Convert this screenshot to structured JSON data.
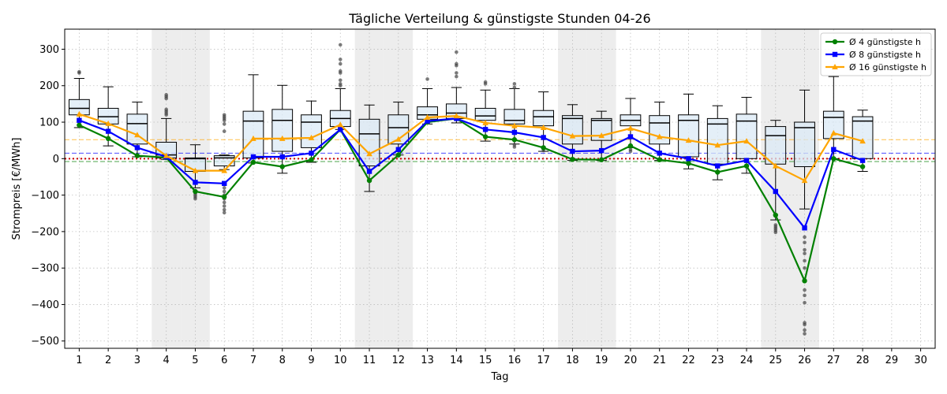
{
  "chart_data": {
    "type": "box",
    "title": "Tägliche Verteilung & günstigste Stunden 04-26",
    "xlabel": "Tag",
    "ylabel": "Strompreis [€/MWh]",
    "xlim": [
      0.5,
      30.5
    ],
    "ylim": [
      -520,
      355
    ],
    "x_ticks": [
      1,
      2,
      3,
      4,
      5,
      6,
      7,
      8,
      9,
      10,
      11,
      12,
      13,
      14,
      15,
      16,
      17,
      18,
      19,
      20,
      21,
      22,
      23,
      24,
      25,
      26,
      27,
      28,
      29,
      30
    ],
    "y_ticks": [
      -500,
      -400,
      -300,
      -200,
      -100,
      0,
      100,
      200,
      300
    ],
    "grid": true,
    "legend_position": "top-right",
    "shaded_days": [
      4,
      5,
      11,
      12,
      18,
      19,
      25,
      26
    ],
    "reference_lines": [
      {
        "y": 52,
        "color": "#ffa500",
        "style": "dashed"
      },
      {
        "y": 15,
        "color": "#0000ff",
        "style": "dashed"
      },
      {
        "y": 0,
        "color": "#cc0000",
        "style": "dotted"
      },
      {
        "y": -8,
        "color": "#008000",
        "style": "dashed"
      }
    ],
    "boxes": [
      {
        "day": 1,
        "whislo": 85,
        "q1": 120,
        "med": 138,
        "q3": 162,
        "whishi": 220,
        "fliers": [
          235,
          238
        ]
      },
      {
        "day": 2,
        "whislo": 35,
        "q1": 95,
        "med": 115,
        "q3": 138,
        "whishi": 197,
        "fliers": []
      },
      {
        "day": 3,
        "whislo": 5,
        "q1": 40,
        "med": 96,
        "q3": 122,
        "whishi": 155,
        "fliers": []
      },
      {
        "day": 4,
        "whislo": -2,
        "q1": 2,
        "med": 10,
        "q3": 45,
        "whishi": 110,
        "fliers": [
          120,
          125,
          130,
          135,
          165,
          170,
          175
        ]
      },
      {
        "day": 5,
        "whislo": -80,
        "q1": -35,
        "med": 0,
        "q3": 2,
        "whishi": 38,
        "fliers": [
          -90,
          -95,
          -100,
          -105,
          -110
        ]
      },
      {
        "day": 6,
        "whislo": -30,
        "q1": -20,
        "med": 2,
        "q3": 8,
        "whishi": 10,
        "fliers": [
          -80,
          -90,
          -100,
          -110,
          -120,
          -130,
          -140,
          -148,
          75,
          95,
          105,
          110,
          115,
          120
        ]
      },
      {
        "day": 7,
        "whislo": -12,
        "q1": 2,
        "med": 103,
        "q3": 130,
        "whishi": 230,
        "fliers": []
      },
      {
        "day": 8,
        "whislo": -40,
        "q1": 20,
        "med": 105,
        "q3": 135,
        "whishi": 201,
        "fliers": []
      },
      {
        "day": 9,
        "whislo": -10,
        "q1": 30,
        "med": 100,
        "q3": 120,
        "whishi": 158,
        "fliers": []
      },
      {
        "day": 10,
        "whislo": 80,
        "q1": 88,
        "med": 110,
        "q3": 132,
        "whishi": 192,
        "fliers": [
          200,
          205,
          215,
          235,
          240,
          260,
          272,
          312
        ]
      },
      {
        "day": 11,
        "whislo": -90,
        "q1": -20,
        "med": 68,
        "q3": 108,
        "whishi": 147,
        "fliers": []
      },
      {
        "day": 12,
        "whislo": 10,
        "q1": 40,
        "med": 85,
        "q3": 120,
        "whishi": 155,
        "fliers": []
      },
      {
        "day": 13,
        "whislo": 95,
        "q1": 108,
        "med": 120,
        "q3": 142,
        "whishi": 192,
        "fliers": [
          218
        ]
      },
      {
        "day": 14,
        "whislo": 98,
        "q1": 110,
        "med": 125,
        "q3": 150,
        "whishi": 195,
        "fliers": [
          225,
          235,
          255,
          260,
          292
        ]
      },
      {
        "day": 15,
        "whislo": 48,
        "q1": 105,
        "med": 117,
        "q3": 138,
        "whishi": 188,
        "fliers": [
          205,
          210
        ]
      },
      {
        "day": 16,
        "whislo": 40,
        "q1": 95,
        "med": 105,
        "q3": 135,
        "whishi": 192,
        "fliers": [
          32,
          38,
          195,
          205
        ]
      },
      {
        "day": 17,
        "whislo": 20,
        "q1": 90,
        "med": 115,
        "q3": 132,
        "whishi": 183,
        "fliers": [
          22,
          28
        ]
      },
      {
        "day": 18,
        "whislo": -5,
        "q1": 40,
        "med": 110,
        "q3": 118,
        "whishi": 148,
        "fliers": []
      },
      {
        "day": 19,
        "whislo": -5,
        "q1": 50,
        "med": 105,
        "q3": 110,
        "whishi": 130,
        "fliers": []
      },
      {
        "day": 20,
        "whislo": 30,
        "q1": 90,
        "med": 105,
        "q3": 120,
        "whishi": 165,
        "fliers": [
          20,
          25
        ]
      },
      {
        "day": 21,
        "whislo": -5,
        "q1": 40,
        "med": 98,
        "q3": 118,
        "whishi": 155,
        "fliers": []
      },
      {
        "day": 22,
        "whislo": -28,
        "q1": 5,
        "med": 105,
        "q3": 120,
        "whishi": 177,
        "fliers": []
      },
      {
        "day": 23,
        "whislo": -58,
        "q1": -15,
        "med": 95,
        "q3": 110,
        "whishi": 145,
        "fliers": []
      },
      {
        "day": 24,
        "whislo": -40,
        "q1": 0,
        "med": 103,
        "q3": 122,
        "whishi": 168,
        "fliers": []
      },
      {
        "day": 25,
        "whislo": -168,
        "q1": -15,
        "med": 63,
        "q3": 88,
        "whishi": 105,
        "fliers": [
          -182,
          -187,
          -192,
          -197,
          -202
        ]
      },
      {
        "day": 26,
        "whislo": -138,
        "q1": -22,
        "med": 85,
        "q3": 100,
        "whishi": 188,
        "fliers": [
          -215,
          -230,
          -250,
          -260,
          -280,
          -300,
          -360,
          -375,
          -395,
          -450,
          -455,
          -470,
          -480
        ]
      },
      {
        "day": 27,
        "whislo": 0,
        "q1": 55,
        "med": 113,
        "q3": 130,
        "whishi": 225,
        "fliers": []
      },
      {
        "day": 28,
        "whislo": -35,
        "q1": 0,
        "med": 103,
        "q3": 115,
        "whishi": 133,
        "fliers": []
      }
    ],
    "series": [
      {
        "name": "Ø 4 günstigste h",
        "color": "#008000",
        "marker": "circle",
        "x": [
          1,
          2,
          3,
          4,
          5,
          6,
          7,
          8,
          9,
          10,
          11,
          12,
          13,
          14,
          15,
          16,
          17,
          18,
          19,
          20,
          21,
          22,
          23,
          24,
          25,
          26,
          27,
          28
        ],
        "values": [
          92,
          55,
          8,
          3,
          -90,
          -105,
          -10,
          -22,
          -3,
          80,
          -60,
          10,
          100,
          110,
          60,
          52,
          30,
          -2,
          -3,
          35,
          -3,
          -13,
          -37,
          -20,
          -155,
          -335,
          0,
          -22
        ]
      },
      {
        "name": "Ø 8 günstigste h",
        "color": "#0000ff",
        "marker": "square",
        "x": [
          1,
          2,
          3,
          4,
          5,
          6,
          7,
          8,
          9,
          10,
          11,
          12,
          13,
          14,
          15,
          16,
          17,
          18,
          19,
          20,
          21,
          22,
          23,
          24,
          25,
          26,
          27,
          28
        ],
        "values": [
          105,
          75,
          30,
          5,
          -65,
          -68,
          5,
          5,
          15,
          80,
          -35,
          25,
          103,
          110,
          80,
          72,
          58,
          20,
          22,
          60,
          15,
          0,
          -20,
          -5,
          -90,
          -190,
          25,
          -5
        ]
      },
      {
        "name": "Ø 16 günstigste h",
        "color": "#ffa500",
        "marker": "triangle",
        "x": [
          1,
          2,
          3,
          4,
          5,
          6,
          7,
          8,
          9,
          10,
          11,
          12,
          13,
          14,
          15,
          16,
          17,
          18,
          19,
          20,
          21,
          22,
          23,
          24,
          25,
          26,
          27,
          28
        ],
        "values": [
          122,
          96,
          65,
          8,
          -33,
          -33,
          55,
          55,
          57,
          93,
          13,
          53,
          113,
          117,
          98,
          90,
          85,
          62,
          63,
          83,
          60,
          50,
          37,
          48,
          -20,
          -60,
          70,
          48
        ]
      }
    ]
  }
}
